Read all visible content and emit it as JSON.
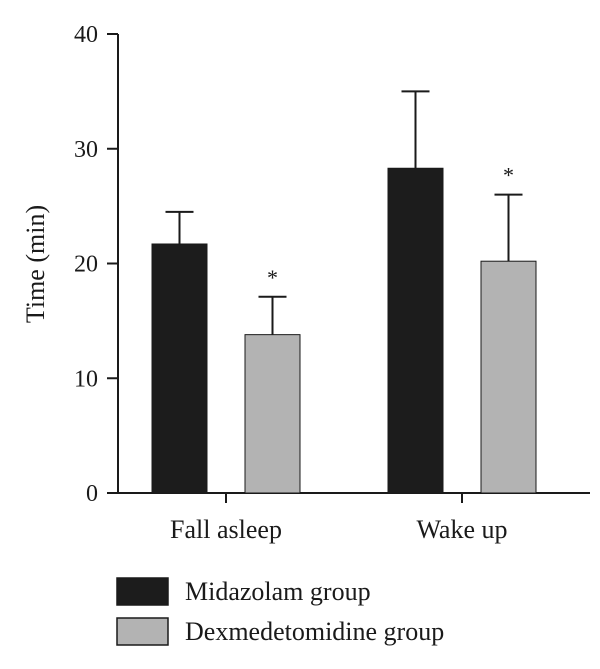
{
  "chart_data": {
    "type": "bar",
    "ylabel": "Time (min)",
    "xlabel": "",
    "ylim": [
      0,
      40
    ],
    "yticks": [
      0,
      10,
      20,
      30,
      40
    ],
    "grid": false,
    "legend_position": "bottom",
    "categories": [
      "Fall asleep",
      "Wake up"
    ],
    "series": [
      {
        "name": "Midazolam group",
        "color": "#1c1c1c",
        "values": [
          21.7,
          28.3
        ],
        "error": [
          2.8,
          6.7
        ],
        "significance": [
          "",
          ""
        ]
      },
      {
        "name": "Dexmedetomidine group",
        "color": "#b3b3b3",
        "values": [
          13.8,
          20.2
        ],
        "error": [
          3.3,
          5.8
        ],
        "significance": [
          "*",
          "*"
        ]
      }
    ]
  }
}
